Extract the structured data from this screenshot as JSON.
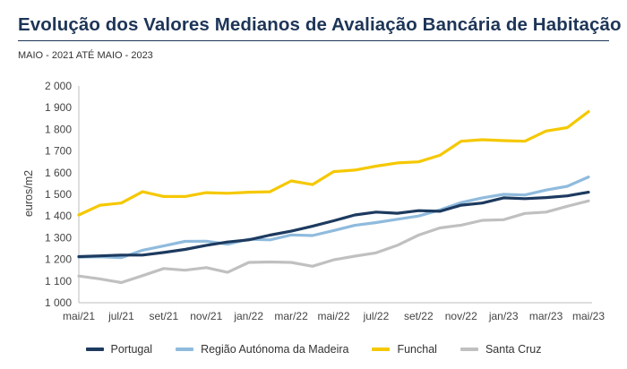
{
  "header": {
    "title": "Evolução dos Valores Medianos de Avaliação Bancária de Habitação",
    "subtitle": "MAIO - 2021 ATÉ MAIO - 2023"
  },
  "colors": {
    "title": "#1d3557",
    "portugal": "#1d3a5f",
    "madeira": "#8fbbdd",
    "funchal": "#f5c800",
    "santa_cruz": "#c0c0c0"
  },
  "chart_data": {
    "type": "line",
    "title": "Evolução dos Valores Medianos de Avaliação Bancária de Habitação",
    "subtitle": "MAIO - 2021 ATÉ MAIO - 2023",
    "xlabel": "",
    "ylabel": "euros/m2",
    "ylim": [
      1000,
      2000
    ],
    "yticks": [
      1000,
      1100,
      1200,
      1300,
      1400,
      1500,
      1600,
      1700,
      1800,
      1900,
      2000
    ],
    "ytick_labels": [
      "1 000",
      "1 100",
      "1 200",
      "1 300",
      "1 400",
      "1 500",
      "1 600",
      "1 700",
      "1 800",
      "1 900",
      "2 000"
    ],
    "x": [
      "mai/21",
      "jun/21",
      "jul/21",
      "ago/21",
      "set/21",
      "out/21",
      "nov/21",
      "dez/21",
      "jan/22",
      "fev/22",
      "mar/22",
      "abr/22",
      "mai/22",
      "jun/22",
      "jul/22",
      "ago/22",
      "set/22",
      "out/22",
      "nov/22",
      "dez/22",
      "jan/23",
      "fev/23",
      "mar/23",
      "abr/23",
      "mai/23"
    ],
    "xtick_labels": [
      "mai/21",
      "jul/21",
      "set/21",
      "nov/21",
      "jan/22",
      "mar/22",
      "mai/22",
      "jul/22",
      "set/22",
      "nov/22",
      "jan/23",
      "mar/23",
      "mai/23"
    ],
    "grid": false,
    "legend_position": "bottom",
    "series": [
      {
        "name": "Portugal",
        "color": "#1d3a5f",
        "values": [
          1213,
          1216,
          1220,
          1220,
          1232,
          1246,
          1265,
          1280,
          1290,
          1312,
          1330,
          1353,
          1378,
          1405,
          1418,
          1413,
          1425,
          1422,
          1450,
          1460,
          1484,
          1480,
          1485,
          1493,
          1510
        ]
      },
      {
        "name": "Região Autónoma da Madeira",
        "color": "#8fbbdd",
        "values": [
          1210,
          1212,
          1208,
          1242,
          1262,
          1283,
          1284,
          1270,
          1293,
          1290,
          1313,
          1310,
          1333,
          1357,
          1370,
          1385,
          1400,
          1428,
          1462,
          1484,
          1500,
          1497,
          1520,
          1537,
          1580
        ]
      },
      {
        "name": "Funchal",
        "color": "#f5c800",
        "values": [
          1405,
          1450,
          1460,
          1512,
          1490,
          1490,
          1508,
          1505,
          1510,
          1512,
          1562,
          1545,
          1605,
          1612,
          1630,
          1645,
          1650,
          1680,
          1745,
          1752,
          1748,
          1745,
          1792,
          1808,
          1882
        ]
      },
      {
        "name": "Santa Cruz",
        "color": "#c0c0c0",
        "values": [
          1123,
          1110,
          1093,
          1125,
          1158,
          1150,
          1162,
          1140,
          1186,
          1188,
          1186,
          1168,
          1198,
          1215,
          1230,
          1265,
          1312,
          1345,
          1358,
          1380,
          1383,
          1412,
          1418,
          1445,
          1470
        ]
      }
    ]
  }
}
